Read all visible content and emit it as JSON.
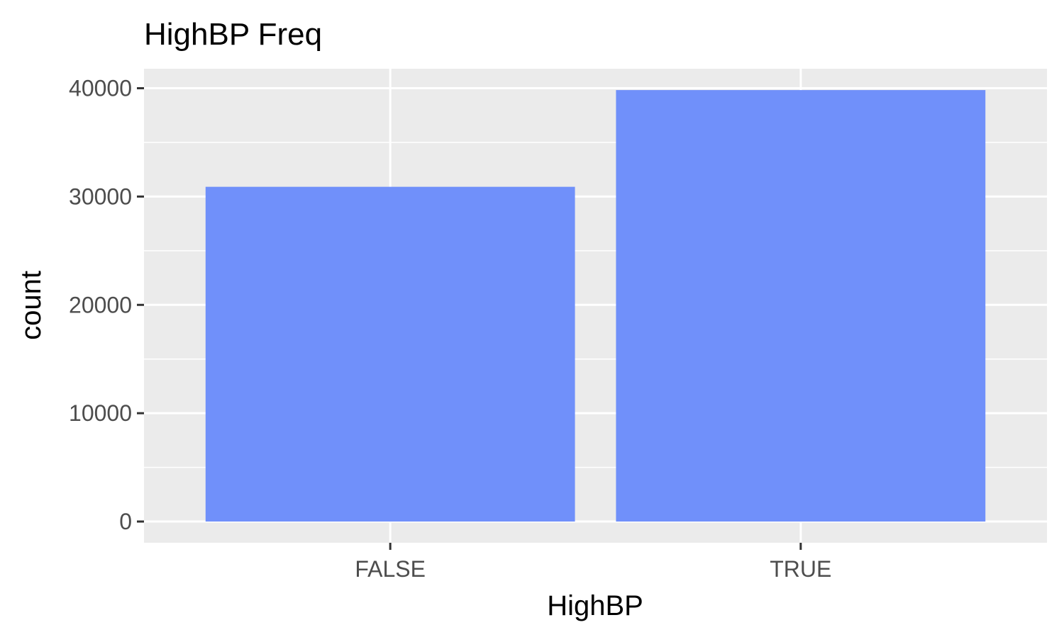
{
  "chart_data": {
    "type": "bar",
    "title": "HighBP Freq",
    "xlabel": "HighBP",
    "ylabel": "count",
    "categories": [
      "FALSE",
      "TRUE"
    ],
    "values": [
      30900,
      39830
    ],
    "ylim": [
      -1960,
      41800
    ],
    "yticks": [
      0,
      10000,
      20000,
      30000,
      40000
    ],
    "ytick_labels": [
      "0",
      "10000",
      "20000",
      "30000",
      "40000"
    ],
    "grid": true,
    "legend": "none",
    "colors": {
      "bar": "#7090fa",
      "panel": "#ebebeb",
      "grid": "#ffffff",
      "tick_text": "#4d4d4d",
      "tick_mark": "#333333"
    }
  }
}
